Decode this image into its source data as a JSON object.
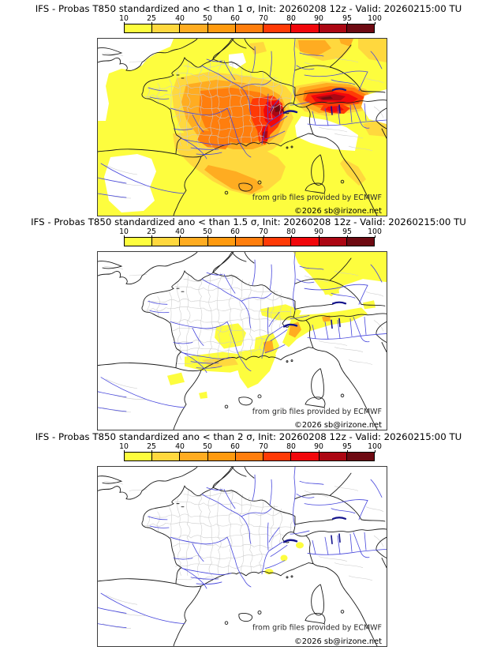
{
  "panels": [
    {
      "title": "IFS - Probas T850  standardized ano < than 1 σ, Init: 20260208 12z - Valid: 20260215:00 TU",
      "credit1": "from grib files provided by ECMWF",
      "credit2": "©2026 sb@irizone.net"
    },
    {
      "title": "IFS - Probas T850  standardized ano < than 1.5 σ, Init: 20260208 12z - Valid: 20260215:00 TU",
      "credit1": "from grib files provided by ECMWF",
      "credit2": "©2026 sb@irizone.net"
    },
    {
      "title": "IFS - Probas T850  standardized ano < than 2 σ, Init: 20260208 12z - Valid: 20260215:00 TU",
      "credit1": "from grib files provided by ECMWF",
      "credit2": "©2026 sb@irizone.net"
    }
  ],
  "colorbar": {
    "tick_labels": [
      "10",
      "25",
      "40",
      "50",
      "60",
      "70",
      "80",
      "90",
      "95",
      "100"
    ],
    "segment_colors": [
      "#fdfd3e",
      "#ffd83e",
      "#ffac21",
      "#ff9a0f",
      "#ff7e0d",
      "#ff3a06",
      "#f1070b",
      "#ac0713",
      "#6e0a12"
    ]
  },
  "map_colors": {
    "background": "#ffffff",
    "coastline": "#1a1a1a",
    "rivers": "#4646dc",
    "lakes": "#14148c",
    "regional_boundaries": "#cbcbcb",
    "frame": "#3c3c3c",
    "credit_text": "#2a2a2a"
  }
}
